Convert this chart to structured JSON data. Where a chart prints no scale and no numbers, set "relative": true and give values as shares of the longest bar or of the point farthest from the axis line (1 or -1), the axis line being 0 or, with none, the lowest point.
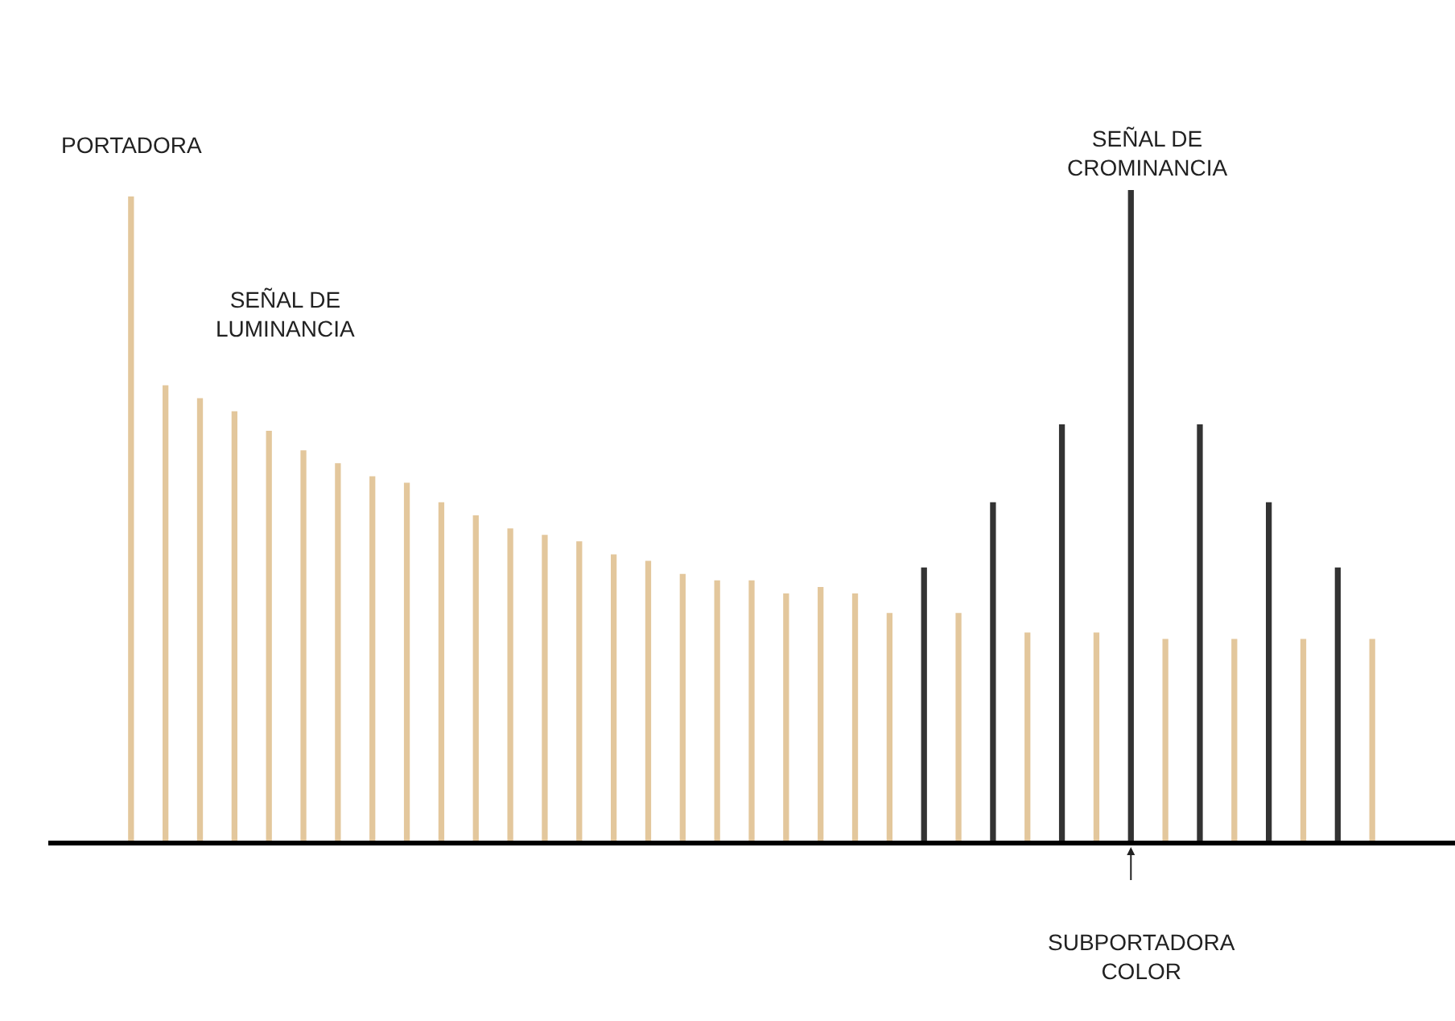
{
  "chart_data": {
    "type": "bar",
    "relative": true,
    "categories": [
      null,
      null,
      null,
      null,
      null,
      null,
      null,
      null,
      null,
      null,
      null,
      null,
      null,
      null,
      null,
      null,
      null,
      null,
      null,
      null,
      null,
      null,
      null,
      null,
      null,
      null,
      null,
      null,
      null,
      null,
      null,
      null,
      null,
      null,
      null,
      null,
      null
    ],
    "values": [
      0.99,
      0.7,
      0.68,
      0.66,
      0.63,
      0.6,
      0.58,
      0.56,
      0.55,
      0.52,
      0.5,
      0.48,
      0.47,
      0.46,
      0.44,
      0.43,
      0.41,
      0.4,
      0.4,
      0.38,
      0.39,
      0.38,
      0.35,
      0.42,
      0.35,
      0.52,
      0.32,
      0.64,
      0.32,
      1,
      0.31,
      0.64,
      0.31,
      0.52,
      0.31,
      0.42,
      0.31
    ],
    "colors": [
      "#e3c79c",
      "#e3c79c",
      "#e3c79c",
      "#e3c79c",
      "#e3c79c",
      "#e3c79c",
      "#e3c79c",
      "#e3c79c",
      "#e3c79c",
      "#e3c79c",
      "#e3c79c",
      "#e3c79c",
      "#e3c79c",
      "#e3c79c",
      "#e3c79c",
      "#e3c79c",
      "#e3c79c",
      "#e3c79c",
      "#e3c79c",
      "#e3c79c",
      "#e3c79c",
      "#e3c79c",
      "#e3c79c",
      "#333333",
      "#e3c79c",
      "#333333",
      "#e3c79c",
      "#333333",
      "#e3c79c",
      "#333333",
      "#e3c79c",
      "#333333",
      "#e3c79c",
      "#333333",
      "#e3c79c",
      "#333333",
      "#e3c79c"
    ],
    "annotations": [
      "PORTADORA",
      "SEÑAL DE\nLUMINANCIA",
      "SEÑAL DE\nCROMINANCIA",
      "SUBPORTADORA\nCOLOR"
    ]
  }
}
